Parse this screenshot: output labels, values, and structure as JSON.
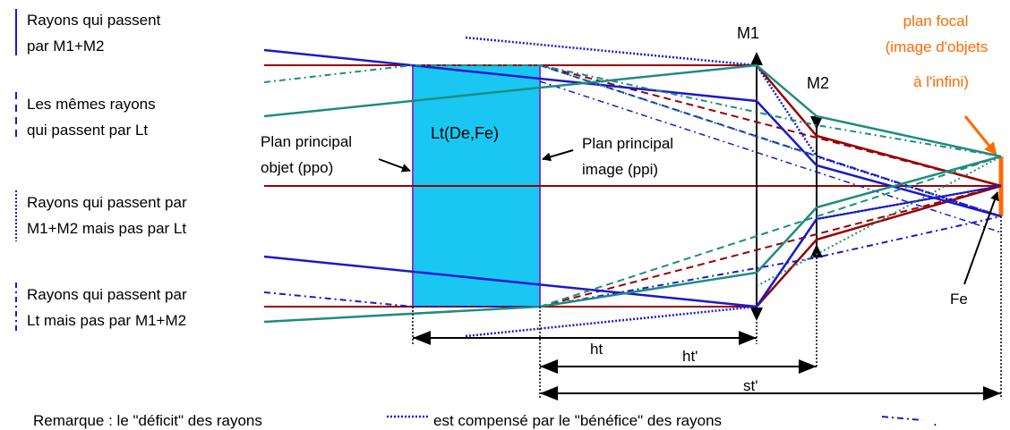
{
  "legend": {
    "solid": [
      "Rayons qui passent",
      "par  M1+M2"
    ],
    "dashed": [
      "Les mêmes rayons",
      "qui passent par Lt"
    ],
    "dotted": [
      "Rayons qui passent par",
      "M1+M2 mais pas par Lt"
    ],
    "dashdot": [
      "Rayons qui passent par",
      "Lt mais pas par M1+M2"
    ]
  },
  "labels": {
    "lens": "Lt(De,Fe)",
    "m1": "M1",
    "m2": "M2",
    "ppo": [
      "Plan principal",
      "objet (ppo)"
    ],
    "ppi": [
      "Plan principal",
      "image (ppi)"
    ],
    "focal": [
      "plan focal",
      "(image d'objets",
      "à  l'infini)"
    ],
    "fe": "Fe"
  },
  "dimensions": {
    "ht": "ht",
    "ht_prime": "ht'",
    "st_prime": "st'"
  },
  "remark": {
    "part1": "Remarque : le \"déficit\" des rayons",
    "part2": "est compensé par le \"bénéfice\" des rayons",
    "part3": "."
  },
  "colors": {
    "blue": "#1a1acc",
    "darkred": "#990000",
    "teal": "#1f8c80",
    "lens_fill": "#19c7f2",
    "lens_border": "#7a3cc8",
    "focal": "#ff6a00",
    "black": "#000000"
  }
}
